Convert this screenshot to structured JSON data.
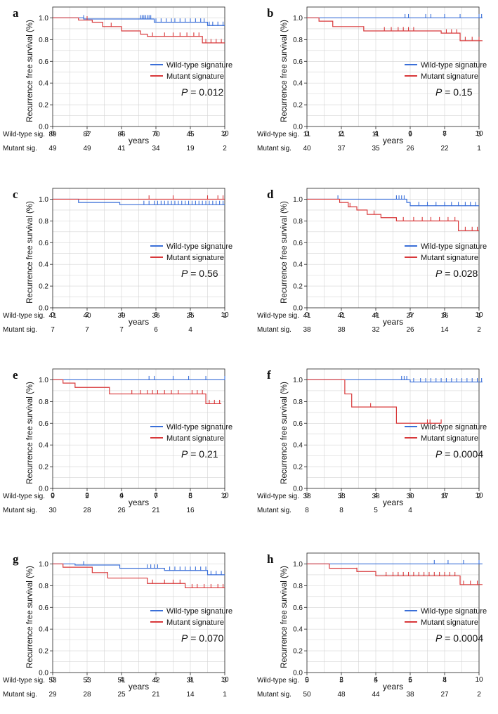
{
  "figure": {
    "legend": {
      "wt": "Wild-type signature",
      "mut": "Mutant signature"
    },
    "row_labels": {
      "wt": "Wild-type sig.",
      "mut": "Mutant sig."
    },
    "colors": {
      "wt": "#3a6fd8",
      "mut": "#d8383a",
      "axis": "#222222",
      "grid": "#d4d4d4"
    }
  },
  "chart_data": [
    {
      "letter": "a",
      "type": "line",
      "ylabel": "Recurrence free survival (%)",
      "xlabel": "years",
      "xlim": [
        0,
        10
      ],
      "ylim": [
        0,
        1.1
      ],
      "xticks": [
        "0",
        "2",
        "4",
        "6",
        "8",
        "10"
      ],
      "yticks": [
        "0.0",
        "0.2",
        "0.4",
        "0.6",
        "0.8",
        "1.0"
      ],
      "p_label": "P",
      "p_value": "= 0.012",
      "series": [
        {
          "name": "Wild-type signature",
          "end": 10,
          "steps": [
            [
              0,
              1
            ],
            [
              1.8,
              0.99
            ],
            [
              5.9,
              0.96
            ],
            [
              9,
              0.93
            ]
          ],
          "censor": [
            1.8,
            5.1,
            5.2,
            5.3,
            5.4,
            5.5,
            5.6,
            5.7,
            6.0,
            6.3,
            6.6,
            6.9,
            7.1,
            7.4,
            7.7,
            8.0,
            8.3,
            8.6,
            8.8,
            9.1,
            9.3,
            9.6,
            9.9
          ]
        },
        {
          "name": "Mutant signature",
          "end": 10,
          "steps": [
            [
              0,
              1
            ],
            [
              1.5,
              0.98
            ],
            [
              2.3,
              0.96
            ],
            [
              2.9,
              0.92
            ],
            [
              4.0,
              0.88
            ],
            [
              5.1,
              0.85
            ],
            [
              5.5,
              0.83
            ],
            [
              8.7,
              0.77
            ]
          ],
          "censor": [
            2.0,
            3.4,
            5.8,
            6.5,
            7.0,
            7.4,
            7.8,
            8.2,
            8.5,
            8.9,
            9.2,
            9.5,
            9.8
          ]
        }
      ],
      "at_risk": {
        "times": [
          0,
          2,
          4,
          6,
          8,
          10
        ],
        "wt": [
          "89",
          "87",
          "86",
          "70",
          "45",
          "2"
        ],
        "mut": [
          "49",
          "49",
          "41",
          "34",
          "19",
          "2"
        ]
      }
    },
    {
      "letter": "b",
      "type": "line",
      "ylabel": "Recurrence free survival (%)",
      "xlabel": "years",
      "xlim": [
        0,
        10
      ],
      "ylim": [
        0,
        1.1
      ],
      "xticks": [
        "0",
        "2",
        "4",
        "6",
        "8",
        "10"
      ],
      "yticks": [
        "0.0",
        "0.2",
        "0.4",
        "0.6",
        "0.8",
        "1.0"
      ],
      "p_label": "P",
      "p_value": "= 0.15",
      "series": [
        {
          "name": "Wild-type signature",
          "end": 10.2,
          "steps": [
            [
              0,
              1
            ]
          ],
          "censor": [
            5.7,
            5.9,
            6.9,
            7.2,
            8.0,
            8.9,
            10.0,
            10.15
          ]
        },
        {
          "name": "Mutant signature",
          "end": 10.2,
          "steps": [
            [
              0,
              1
            ],
            [
              0.7,
              0.97
            ],
            [
              1.5,
              0.92
            ],
            [
              3.3,
              0.88
            ],
            [
              7.8,
              0.86
            ],
            [
              8.9,
              0.79
            ]
          ],
          "censor": [
            4.5,
            4.9,
            5.3,
            5.6,
            5.9,
            6.2,
            8.1,
            8.4,
            8.7,
            9.2,
            9.6,
            10.0
          ]
        }
      ],
      "at_risk": {
        "times": [
          0,
          2,
          4,
          6,
          8,
          10
        ],
        "wt": [
          "11",
          "11",
          "11",
          "9",
          "7",
          "3"
        ],
        "mut": [
          "40",
          "37",
          "35",
          "26",
          "22",
          "1"
        ]
      }
    },
    {
      "letter": "c",
      "type": "line",
      "ylabel": "Recurrence free survival (%)",
      "xlabel": "years",
      "xlim": [
        0,
        10
      ],
      "ylim": [
        0,
        1.1
      ],
      "xticks": [
        "0",
        "2",
        "4",
        "6",
        "8",
        "10"
      ],
      "yticks": [
        "0.0",
        "0.2",
        "0.4",
        "0.6",
        "0.8",
        "1.0"
      ],
      "p_label": "P",
      "p_value": "= 0.56",
      "series": [
        {
          "name": "Wild-type signature",
          "end": 10,
          "steps": [
            [
              0,
              1
            ],
            [
              1.5,
              0.97
            ],
            [
              3.9,
              0.95
            ],
            [
              9.0,
              0.95
            ]
          ],
          "censor": [
            5.3,
            5.6,
            5.9,
            6.1,
            6.3,
            6.5,
            6.7,
            6.9,
            7.1,
            7.3,
            7.5,
            7.7,
            7.9,
            8.1,
            8.3,
            8.5,
            8.7,
            8.9,
            9.1,
            9.3,
            9.5,
            9.7,
            9.9
          ]
        },
        {
          "name": "Mutant signature",
          "end": 10,
          "steps": [
            [
              0,
              1
            ],
            [
              1.5,
              1.0
            ]
          ],
          "censor": [
            5.6,
            7.0,
            9.0,
            9.6,
            9.9
          ]
        }
      ],
      "at_risk": {
        "times": [
          0,
          2,
          4,
          6,
          8,
          10
        ],
        "wt": [
          "41",
          "40",
          "39",
          "36",
          "25",
          "1"
        ],
        "mut": [
          "7",
          "7",
          "7",
          "6",
          "4",
          ""
        ]
      }
    },
    {
      "letter": "d",
      "type": "line",
      "ylabel": "Recurrence free survival (%)",
      "xlabel": "years",
      "xlim": [
        0,
        10
      ],
      "ylim": [
        0,
        1.1
      ],
      "xticks": [
        "0",
        "2",
        "4",
        "6",
        "8",
        "10"
      ],
      "yticks": [
        "0.0",
        "0.2",
        "0.4",
        "0.6",
        "0.8",
        "1.0"
      ],
      "p_label": "P",
      "p_value": "= 0.028",
      "series": [
        {
          "name": "Wild-type signature",
          "end": 10,
          "steps": [
            [
              0,
              1
            ],
            [
              5.8,
              0.97
            ],
            [
              6.0,
              0.94
            ]
          ],
          "censor": [
            1.8,
            5.2,
            5.35,
            5.5,
            5.65,
            6.5,
            7.0,
            7.5,
            8.0,
            8.4,
            8.8,
            9.2,
            9.5,
            9.8
          ]
        },
        {
          "name": "Mutant signature",
          "end": 10,
          "steps": [
            [
              0,
              1
            ],
            [
              1.9,
              0.97
            ],
            [
              2.4,
              0.93
            ],
            [
              2.9,
              0.9
            ],
            [
              3.5,
              0.86
            ],
            [
              4.3,
              0.83
            ],
            [
              5.2,
              0.8
            ],
            [
              8.8,
              0.71
            ]
          ],
          "censor": [
            2.5,
            3.9,
            5.6,
            6.2,
            6.7,
            7.2,
            7.7,
            8.2,
            8.6,
            9.2,
            9.6,
            9.9
          ]
        }
      ],
      "at_risk": {
        "times": [
          0,
          2,
          4,
          6,
          8,
          10
        ],
        "wt": [
          "41",
          "41",
          "41",
          "27",
          "16",
          "1"
        ],
        "mut": [
          "38",
          "38",
          "32",
          "26",
          "14",
          "2"
        ]
      }
    },
    {
      "letter": "e",
      "type": "line",
      "ylabel": "Recurrence free survival (%)",
      "xlabel": "years",
      "xlim": [
        0,
        10
      ],
      "ylim": [
        0,
        1.1
      ],
      "xticks": [
        "0",
        "2",
        "4",
        "6",
        "8",
        "10"
      ],
      "yticks": [
        "0.0",
        "0.2",
        "0.4",
        "0.6",
        "0.8",
        "1.0"
      ],
      "p_label": "P",
      "p_value": "= 0.21",
      "series": [
        {
          "name": "Wild-type signature",
          "end": 10,
          "steps": [
            [
              0,
              1
            ]
          ],
          "censor": [
            5.6,
            5.9,
            7.0,
            7.9,
            8.9,
            10.0
          ]
        },
        {
          "name": "Mutant signature",
          "end": 9.8,
          "steps": [
            [
              0,
              1
            ],
            [
              0.6,
              0.97
            ],
            [
              1.3,
              0.93
            ],
            [
              3.3,
              0.87
            ],
            [
              8.9,
              0.78
            ]
          ],
          "censor": [
            4.6,
            5.1,
            5.5,
            5.8,
            6.1,
            6.5,
            6.9,
            7.3,
            8.1,
            8.4,
            8.7,
            9.1,
            9.4,
            9.7
          ]
        }
      ],
      "at_risk": {
        "times": [
          0,
          2,
          4,
          6,
          8,
          10
        ],
        "wt": [
          "9",
          "9",
          "9",
          "7",
          "5",
          "2"
        ],
        "mut": [
          "30",
          "28",
          "26",
          "21",
          "16",
          ""
        ]
      }
    },
    {
      "letter": "f",
      "type": "line",
      "ylabel": "Recurrence free survival (%)",
      "xlabel": "years",
      "xlim": [
        0,
        10
      ],
      "ylim": [
        0,
        1.1
      ],
      "xticks": [
        "0",
        "2",
        "4",
        "6",
        "8",
        "10"
      ],
      "yticks": [
        "0.0",
        "0.2",
        "0.4",
        "0.6",
        "0.8",
        "1.0"
      ],
      "p_label": "P",
      "p_value": "= 0.0004",
      "series": [
        {
          "name": "Wild-type signature",
          "end": 10.2,
          "steps": [
            [
              0,
              1
            ],
            [
              6.0,
              0.98
            ]
          ],
          "censor": [
            5.5,
            5.65,
            5.8,
            6.2,
            6.6,
            6.9,
            7.2,
            7.5,
            7.8,
            8.1,
            8.4,
            8.7,
            9.0,
            9.3,
            9.6,
            9.9,
            10.15
          ]
        },
        {
          "name": "Mutant signature",
          "end": 7.8,
          "steps": [
            [
              0,
              1
            ],
            [
              2.2,
              0.87
            ],
            [
              2.6,
              0.75
            ],
            [
              5.2,
              0.6
            ]
          ],
          "censor": [
            3.7,
            7.0,
            7.15,
            7.8
          ]
        }
      ],
      "at_risk": {
        "times": [
          0,
          2,
          4,
          6,
          8,
          10
        ],
        "wt": [
          "38",
          "38",
          "38",
          "30",
          "17",
          "2"
        ],
        "mut": [
          "8",
          "8",
          "5",
          "4",
          "",
          ""
        ]
      }
    },
    {
      "letter": "g",
      "type": "line",
      "ylabel": "Recurrence free survival (%)",
      "xlabel": "years",
      "xlim": [
        0,
        10
      ],
      "ylim": [
        0,
        1.1
      ],
      "xticks": [
        "0",
        "2",
        "4",
        "6",
        "8",
        "10"
      ],
      "yticks": [
        "0.0",
        "0.2",
        "0.4",
        "0.6",
        "0.8",
        "1.0"
      ],
      "p_label": "P",
      "p_value": "= 0.070",
      "series": [
        {
          "name": "Wild-type signature",
          "end": 10,
          "steps": [
            [
              0,
              1
            ],
            [
              1.3,
              0.99
            ],
            [
              3.9,
              0.96
            ],
            [
              6.5,
              0.94
            ],
            [
              9.0,
              0.9
            ]
          ],
          "censor": [
            1.8,
            5.5,
            5.7,
            5.9,
            6.1,
            6.8,
            7.1,
            7.4,
            7.7,
            8.0,
            8.3,
            8.6,
            8.9,
            9.2,
            9.5,
            9.8
          ]
        },
        {
          "name": "Mutant signature",
          "end": 10,
          "steps": [
            [
              0,
              1
            ],
            [
              0.6,
              0.97
            ],
            [
              2.3,
              0.92
            ],
            [
              3.2,
              0.87
            ],
            [
              5.5,
              0.82
            ],
            [
              7.7,
              0.78
            ]
          ],
          "censor": [
            5.8,
            6.5,
            7.0,
            7.4,
            8.1,
            8.4,
            8.8,
            9.2,
            9.6,
            9.9
          ]
        }
      ],
      "at_risk": {
        "times": [
          0,
          2,
          4,
          6,
          8,
          10
        ],
        "wt": [
          "53",
          "53",
          "51",
          "42",
          "31",
          "3"
        ],
        "mut": [
          "29",
          "28",
          "25",
          "21",
          "14",
          "1"
        ]
      }
    },
    {
      "letter": "h",
      "type": "line",
      "ylabel": "Recurrence free survival (%)",
      "xlabel": "years",
      "xlim": [
        0,
        10
      ],
      "ylim": [
        0,
        1.1
      ],
      "xticks": [
        "0",
        "2",
        "4",
        "6",
        "8",
        "10"
      ],
      "yticks": [
        "0.0",
        "0.2",
        "0.4",
        "0.6",
        "0.8",
        "1.0"
      ],
      "p_label": "P",
      "p_value": "= 0.0004",
      "series": [
        {
          "name": "Wild-type signature",
          "end": 10.2,
          "steps": [
            [
              0,
              1
            ]
          ],
          "censor": [
            7.4,
            8.2,
            9.1,
            10.0
          ]
        },
        {
          "name": "Mutant signature",
          "end": 10.2,
          "steps": [
            [
              0,
              1
            ],
            [
              1.3,
              0.96
            ],
            [
              2.9,
              0.93
            ],
            [
              4.0,
              0.89
            ],
            [
              8.9,
              0.81
            ]
          ],
          "censor": [
            2.9,
            4.6,
            5.0,
            5.3,
            5.6,
            5.9,
            6.2,
            6.5,
            6.8,
            7.1,
            7.4,
            7.7,
            8.0,
            8.3,
            8.6,
            9.1,
            9.5,
            9.9
          ]
        }
      ],
      "at_risk": {
        "times": [
          0,
          2,
          4,
          6,
          8,
          10
        ],
        "wt": [
          "5",
          "5",
          "5",
          "5",
          "4",
          ""
        ],
        "mut": [
          "50",
          "48",
          "44",
          "38",
          "27",
          "2"
        ]
      }
    }
  ]
}
